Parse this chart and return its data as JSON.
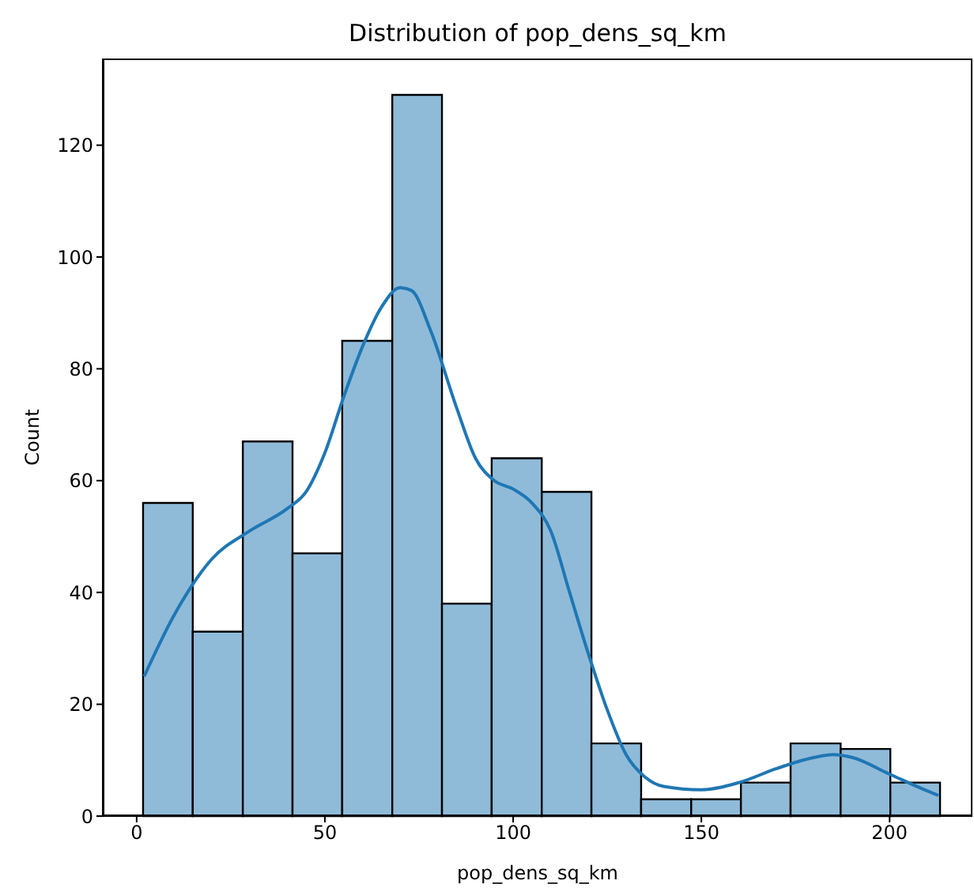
{
  "chart_data": {
    "type": "histogram",
    "title": "Distribution of pop_dens_sq_km",
    "xlabel": "pop_dens_sq_km",
    "ylabel": "Count",
    "bins": [
      1.7,
      14.9,
      28.2,
      41.4,
      54.6,
      67.9,
      81.1,
      94.3,
      107.6,
      120.8,
      134.0,
      147.3,
      160.5,
      173.7,
      187.0,
      200.2,
      213.4
    ],
    "values": [
      56,
      33,
      67,
      47,
      85,
      129,
      38,
      64,
      58,
      13,
      3,
      3,
      6,
      13,
      12,
      6
    ],
    "color": "#8fbbd9",
    "series": [
      {
        "type": "line",
        "color": "#1f77b4",
        "x": [
          2,
          10,
          20,
          30,
          40,
          45,
          50,
          55,
          60,
          65,
          70,
          73,
          78,
          85,
          90,
          95,
          100,
          105,
          110,
          115,
          120,
          125,
          130,
          135,
          140,
          150,
          160,
          170,
          180,
          185,
          190,
          200,
          210,
          213
        ],
        "values": [
          25,
          36,
          46,
          51,
          55,
          58,
          65,
          75,
          84,
          91,
          94.5,
          94,
          87,
          73,
          64,
          60,
          58.5,
          56,
          51,
          40,
          29,
          19,
          11,
          7,
          5.3,
          4.7,
          6,
          8.5,
          10.5,
          11,
          10.5,
          7.5,
          4.5,
          3.7
        ]
      }
    ],
    "xlim": [
      -9,
      222
    ],
    "xticks": [
      0,
      50,
      100,
      150,
      200
    ],
    "ylim": [
      0,
      135.5
    ],
    "yticks": [
      0,
      20,
      40,
      60,
      80,
      100,
      120
    ]
  }
}
